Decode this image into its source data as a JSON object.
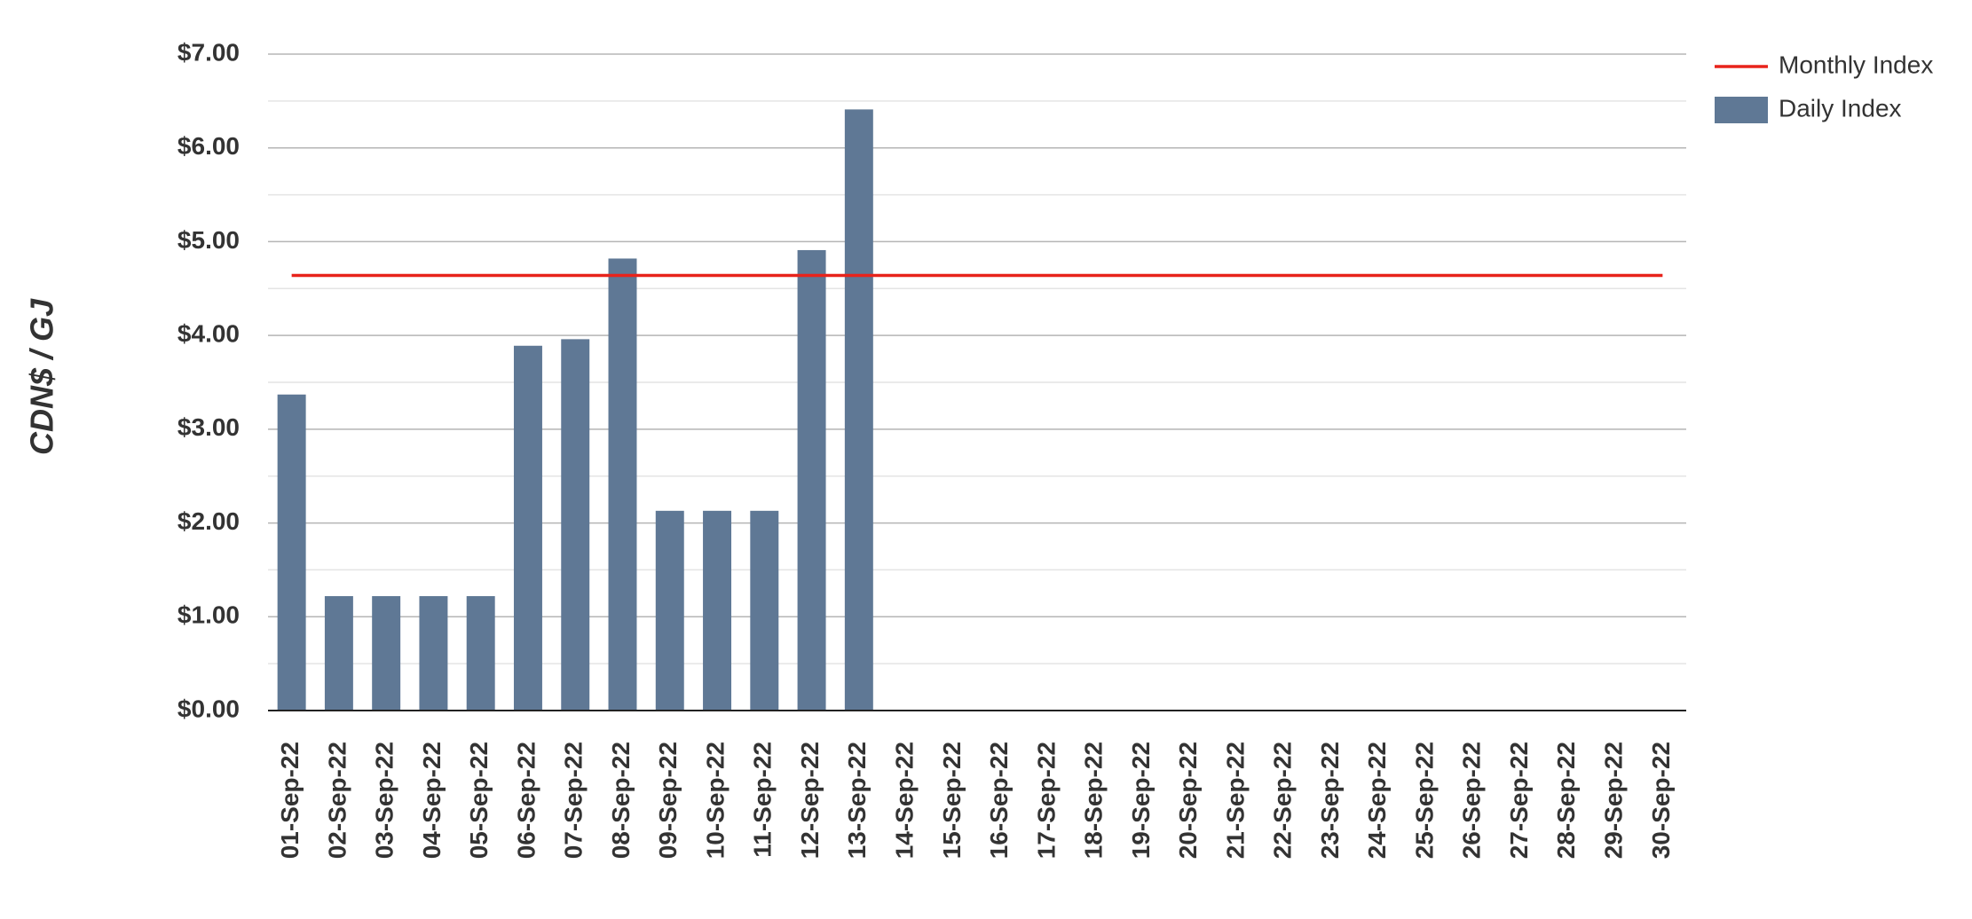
{
  "chart_data": {
    "type": "bar",
    "y_label": "CDN$ / GJ",
    "categories": [
      "01-Sep-22",
      "02-Sep-22",
      "03-Sep-22",
      "04-Sep-22",
      "05-Sep-22",
      "06-Sep-22",
      "07-Sep-22",
      "08-Sep-22",
      "09-Sep-22",
      "10-Sep-22",
      "11-Sep-22",
      "12-Sep-22",
      "13-Sep-22",
      "14-Sep-22",
      "15-Sep-22",
      "16-Sep-22",
      "17-Sep-22",
      "18-Sep-22",
      "19-Sep-22",
      "20-Sep-22",
      "21-Sep-22",
      "22-Sep-22",
      "23-Sep-22",
      "24-Sep-22",
      "25-Sep-22",
      "26-Sep-22",
      "27-Sep-22",
      "28-Sep-22",
      "29-Sep-22",
      "30-Sep-22"
    ],
    "series": [
      {
        "name": "Monthly Index",
        "type": "line",
        "color": "#e8231b",
        "values": [
          4.64,
          4.64,
          4.64,
          4.64,
          4.64,
          4.64,
          4.64,
          4.64,
          4.64,
          4.64,
          4.64,
          4.64,
          4.64,
          4.64,
          4.64,
          4.64,
          4.64,
          4.64,
          4.64,
          4.64,
          4.64,
          4.64,
          4.64,
          4.64,
          4.64,
          4.64,
          4.64,
          4.64,
          4.64,
          4.64
        ]
      },
      {
        "name": "Daily Index",
        "type": "bar",
        "color": "#5f7895",
        "values": [
          3.37,
          1.22,
          1.22,
          1.22,
          1.22,
          3.89,
          3.96,
          4.82,
          2.13,
          2.13,
          2.13,
          4.91,
          6.41,
          null,
          null,
          null,
          null,
          null,
          null,
          null,
          null,
          null,
          null,
          null,
          null,
          null,
          null,
          null,
          null,
          null
        ]
      }
    ],
    "ylim": [
      0,
      7
    ],
    "yticks": [
      {
        "value": 0,
        "label": "$0.00"
      },
      {
        "value": 1,
        "label": "$1.00"
      },
      {
        "value": 2,
        "label": "$2.00"
      },
      {
        "value": 3,
        "label": "$3.00"
      },
      {
        "value": 4,
        "label": "$4.00"
      },
      {
        "value": 5,
        "label": "$5.00"
      },
      {
        "value": 6,
        "label": "$6.00"
      },
      {
        "value": 7,
        "label": "$7.00"
      }
    ],
    "minor_yticks": [
      0.5,
      1.5,
      2.5,
      3.5,
      4.5,
      5.5,
      6.5
    ],
    "grid": true,
    "legend": "top-right"
  }
}
